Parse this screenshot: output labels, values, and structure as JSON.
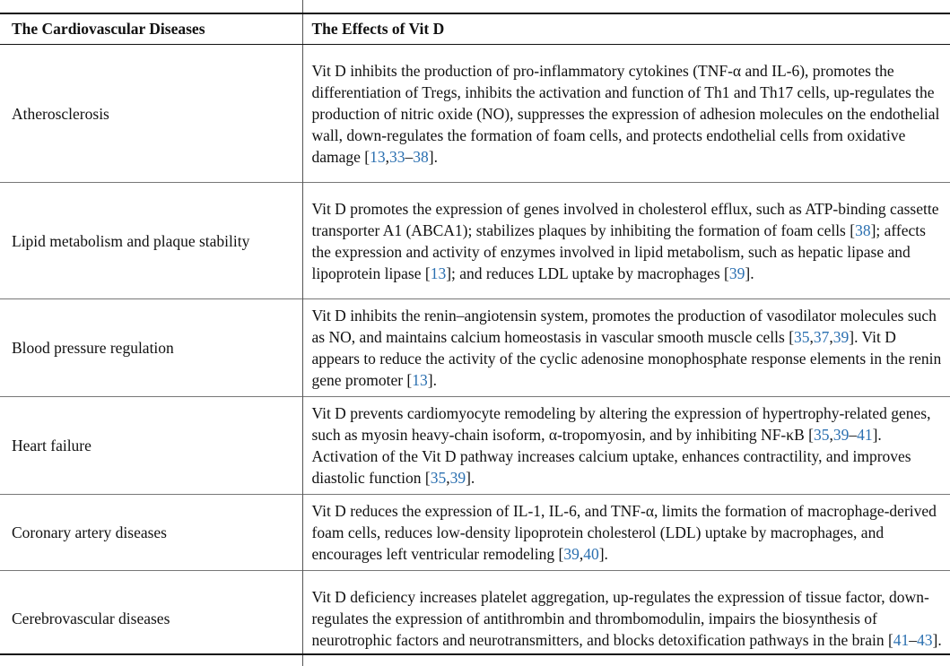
{
  "table": {
    "headers": [
      "The Cardiovascular Diseases",
      "The Effects of Vit D"
    ],
    "rows": [
      {
        "disease": "Atherosclerosis",
        "effect": [
          {
            "t": "Vit D inhibits the production of pro-inflammatory cytokines (TNF-α and IL-6), promotes the differentiation of Tregs, inhibits the activation and function of Th1 and Th17 cells, up-regulates the production of nitric oxide (NO), suppresses the expression of adhesion molecules on the endothelial wall, down-regulates the formation of foam cells, and protects endothelial cells from oxidative damage ["
          },
          {
            "r": "13"
          },
          {
            "t": ","
          },
          {
            "r": "33"
          },
          {
            "t": "–"
          },
          {
            "r": "38"
          },
          {
            "t": "]."
          }
        ]
      },
      {
        "disease": "Lipid metabolism and plaque stability",
        "effect": [
          {
            "t": "Vit D promotes the expression of genes involved in cholesterol efflux, such as ATP-binding cassette transporter A1 (ABCA1); stabilizes plaques by inhibiting the formation of foam cells ["
          },
          {
            "r": "38"
          },
          {
            "t": "]; affects the expression and activity of enzymes involved in lipid metabolism, such as hepatic lipase and lipoprotein lipase ["
          },
          {
            "r": "13"
          },
          {
            "t": "]; and reduces LDL uptake by macrophages ["
          },
          {
            "r": "39"
          },
          {
            "t": "]."
          }
        ]
      },
      {
        "disease": "Blood pressure regulation",
        "effect": [
          {
            "t": "Vit D inhibits the renin–angiotensin system, promotes the production of vasodilator molecules such as NO, and maintains calcium homeostasis in vascular smooth muscle cells ["
          },
          {
            "r": "35"
          },
          {
            "t": ","
          },
          {
            "r": "37"
          },
          {
            "t": ","
          },
          {
            "r": "39"
          },
          {
            "t": "]. Vit D appears to reduce the activity of the cyclic adenosine monophosphate response elements in the renin gene promoter ["
          },
          {
            "r": "13"
          },
          {
            "t": "]."
          }
        ]
      },
      {
        "disease": "Heart failure",
        "effect": [
          {
            "t": "Vit D prevents cardiomyocyte remodeling by altering the expression of hypertrophy-related genes, such as myosin heavy-chain isoform, α-tropomyosin, and by inhibiting NF-κB ["
          },
          {
            "r": "35"
          },
          {
            "t": ","
          },
          {
            "r": "39"
          },
          {
            "t": "–"
          },
          {
            "r": "41"
          },
          {
            "t": "]. Activation of the Vit D pathway increases calcium uptake, enhances contractility, and improves diastolic function ["
          },
          {
            "r": "35"
          },
          {
            "t": ","
          },
          {
            "r": "39"
          },
          {
            "t": "]."
          }
        ]
      },
      {
        "disease": "Coronary artery diseases",
        "effect": [
          {
            "t": "Vit D reduces the expression of IL-1, IL-6, and TNF-α, limits the formation of macrophage-derived foam cells, reduces low-density lipoprotein cholesterol (LDL) uptake by macrophages, and encourages left ventricular remodeling ["
          },
          {
            "r": "39"
          },
          {
            "t": ","
          },
          {
            "r": "40"
          },
          {
            "t": "]."
          }
        ]
      },
      {
        "disease": "Cerebrovascular diseases",
        "effect": [
          {
            "t": "Vit D deficiency increases platelet aggregation, up-regulates the expression of tissue factor, down-regulates the expression of antithrombin and thrombomodulin, impairs the biosynthesis of neurotrophic factors and neurotransmitters, and blocks detoxification pathways in the brain ["
          },
          {
            "r": "41"
          },
          {
            "t": "–"
          },
          {
            "r": "43"
          },
          {
            "t": "]."
          }
        ]
      }
    ]
  }
}
